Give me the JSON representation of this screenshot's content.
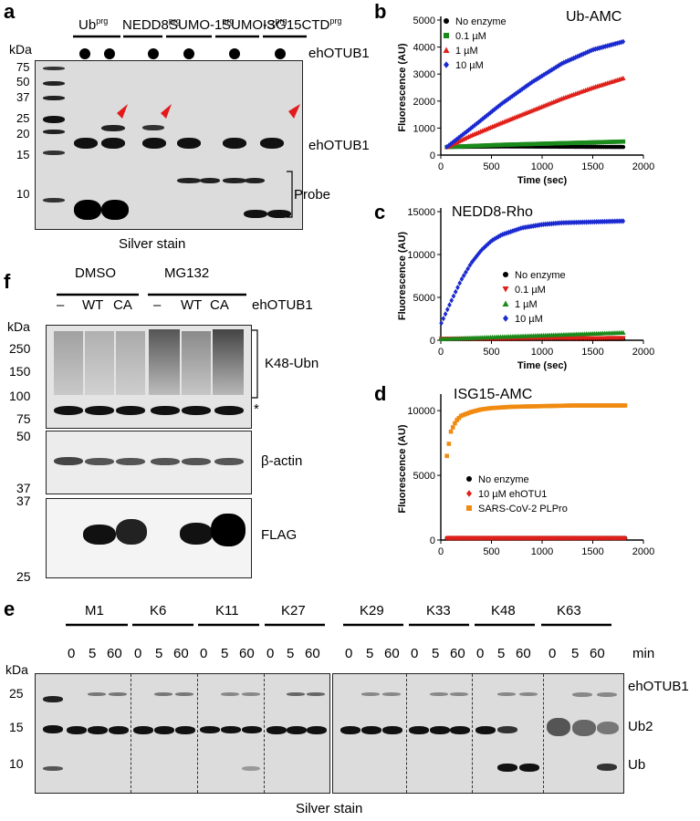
{
  "panel_labels": {
    "a": "a",
    "b": "b",
    "c": "c",
    "d": "d",
    "e": "e",
    "f": "f"
  },
  "panel_a": {
    "kda_label": "kDa",
    "mw_markers": [
      "75",
      "50",
      "37",
      "25",
      "20",
      "15",
      "10"
    ],
    "probes": [
      "Ub",
      "NEDD8",
      "SUMO-1",
      "SUMO-3",
      "ISG15CTD"
    ],
    "probe_superscript": "prg",
    "enzyme_row_label": "ehOTUB1",
    "band_labels": {
      "enzyme": "ehOTUB1",
      "probe": "Probe"
    },
    "caption": "Silver stain"
  },
  "panel_e": {
    "linkages": [
      "M1",
      "K6",
      "K11",
      "K27",
      "K29",
      "K33",
      "K48",
      "K63"
    ],
    "timepoints": [
      "0",
      "5",
      "60"
    ],
    "time_unit": "min",
    "kda_label": "kDa",
    "mw_markers": [
      "25",
      "15",
      "10"
    ],
    "band_labels": [
      "ehOTUB1",
      "Ub2",
      "Ub"
    ],
    "caption": "Silver stain"
  },
  "panel_f": {
    "treatments": [
      "DMSO",
      "MG132"
    ],
    "lanes": [
      "–",
      "WT",
      "CA",
      "–",
      "WT",
      "CA"
    ],
    "enzyme_label": "ehOTUB1",
    "kda_label": "kDa",
    "blot1_markers": [
      "250",
      "150",
      "100",
      "75"
    ],
    "blot2_markers": [
      "50",
      "37"
    ],
    "blot3_markers": [
      "37",
      "25"
    ],
    "blot_labels": [
      "K48-Ubn",
      "β-actin",
      "FLAG"
    ],
    "asterisk": "*"
  },
  "chart_data": [
    {
      "panel": "b",
      "type": "scatter",
      "title": "Ub-AMC",
      "xlabel": "Time (sec)",
      "ylabel": "Fluorescence (AU)",
      "xlim": [
        0,
        2000
      ],
      "ylim": [
        0,
        5000
      ],
      "xticks": [
        0,
        500,
        1000,
        1500,
        2000
      ],
      "yticks": [
        0,
        1000,
        2000,
        3000,
        4000,
        5000
      ],
      "x_range": [
        60,
        1800
      ],
      "series": [
        {
          "name": "No enzyme",
          "color": "#000000",
          "marker": "circle",
          "x": [
            60,
            600,
            1200,
            1800
          ],
          "y": [
            300,
            320,
            310,
            300
          ]
        },
        {
          "name": "0.1 µM",
          "color": "#1a8a1a",
          "marker": "square",
          "x": [
            60,
            600,
            1200,
            1800
          ],
          "y": [
            300,
            380,
            440,
            500
          ]
        },
        {
          "name": "1 µM",
          "color": "#e0201a",
          "marker": "triangle",
          "x": [
            60,
            300,
            600,
            900,
            1200,
            1500,
            1800
          ],
          "y": [
            300,
            730,
            1200,
            1650,
            2100,
            2500,
            2850
          ]
        },
        {
          "name": "10 µM",
          "color": "#1a2ad0",
          "marker": "diamond",
          "x": [
            60,
            300,
            600,
            900,
            1200,
            1500,
            1800
          ],
          "y": [
            300,
            1000,
            1900,
            2700,
            3400,
            3900,
            4200
          ]
        }
      ],
      "legend": "top-left"
    },
    {
      "panel": "c",
      "type": "scatter",
      "title": "NEDD8-Rho",
      "xlabel": "Time (sec)",
      "ylabel": "Fluorescence (AU)",
      "xlim": [
        0,
        2000
      ],
      "ylim": [
        0,
        15000
      ],
      "xticks": [
        0,
        500,
        1000,
        1500,
        2000
      ],
      "yticks": [
        0,
        5000,
        10000,
        15000
      ],
      "x_range": [
        5,
        1800
      ],
      "series": [
        {
          "name": "No enzyme",
          "color": "#000000",
          "marker": "circle",
          "x": [
            5,
            900,
            1800
          ],
          "y": [
            150,
            150,
            150
          ]
        },
        {
          "name": "0.1 µM",
          "color": "#e0201a",
          "marker": "triangle-down",
          "x": [
            5,
            900,
            1800
          ],
          "y": [
            150,
            200,
            250
          ]
        },
        {
          "name": "1 µM",
          "color": "#1a8a1a",
          "marker": "triangle",
          "x": [
            5,
            600,
            1200,
            1800
          ],
          "y": [
            150,
            400,
            650,
            900
          ]
        },
        {
          "name": "10 µM",
          "color": "#1a2ad0",
          "marker": "diamond",
          "x": [
            5,
            100,
            200,
            300,
            400,
            500,
            600,
            800,
            1000,
            1200,
            1500,
            1800
          ],
          "y": [
            2000,
            4500,
            7000,
            9000,
            10500,
            11600,
            12300,
            13100,
            13500,
            13700,
            13800,
            13900
          ]
        }
      ],
      "legend": "center-right"
    },
    {
      "panel": "d",
      "type": "scatter",
      "title": "ISG15-AMC",
      "xlabel": "Time (sec)",
      "ylabel": "Fluorescence (AU)",
      "xlim": [
        0,
        2000
      ],
      "ylim": [
        0,
        11000
      ],
      "xticks": [
        0,
        500,
        1000,
        1500,
        2000
      ],
      "yticks": [
        0,
        5000,
        10000
      ],
      "x_range": [
        60,
        1820
      ],
      "series": [
        {
          "name": "No enzyme",
          "color": "#000000",
          "marker": "circle",
          "x": [
            60,
            900,
            1820
          ],
          "y": [
            150,
            150,
            150
          ]
        },
        {
          "name": "10 µM ehOTU1",
          "color": "#e0201a",
          "marker": "diamond",
          "x": [
            60,
            900,
            1820
          ],
          "y": [
            150,
            150,
            150
          ]
        },
        {
          "name": "SARS-CoV-2 PLPro",
          "color": "#f08a10",
          "marker": "square",
          "x": [
            60,
            100,
            150,
            200,
            300,
            400,
            500,
            700,
            1000,
            1300,
            1600,
            1820
          ],
          "y": [
            6500,
            8400,
            9200,
            9600,
            9900,
            10100,
            10200,
            10300,
            10350,
            10400,
            10400,
            10400
          ]
        }
      ],
      "legend": "bottom-left"
    }
  ]
}
